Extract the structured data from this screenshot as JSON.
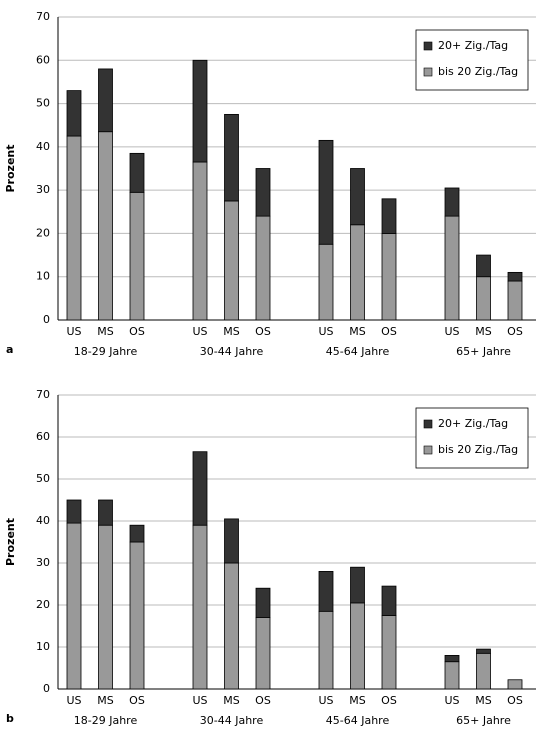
{
  "chart_data": [
    {
      "type": "stacked_bar",
      "label": "a",
      "ylabel": "Prozent",
      "categories": [
        "US",
        "MS",
        "OS",
        "US",
        "MS",
        "OS",
        "US",
        "MS",
        "OS",
        "US",
        "MS",
        "OS"
      ],
      "groups": [
        "18-29 Jahre",
        "30-44 Jahre",
        "45-64 Jahre",
        "65+ Jahre"
      ],
      "series": [
        {
          "name": "bis 20 Zig./Tag",
          "color": "#999999",
          "values": [
            42.5,
            43.5,
            29.5,
            36.5,
            27.5,
            24,
            17.5,
            22,
            20,
            24,
            10,
            9
          ]
        },
        {
          "name": "20+ Zig./Tag",
          "color": "#333333",
          "values": [
            10.5,
            14.5,
            9,
            23.5,
            20,
            11,
            24,
            13,
            8,
            6.5,
            5,
            2
          ]
        }
      ],
      "ylim": [
        0,
        70
      ],
      "yticks": [
        0,
        10,
        20,
        30,
        40,
        50,
        60,
        70
      ],
      "grid": true,
      "legend": "upper-right"
    },
    {
      "type": "stacked_bar",
      "label": "b",
      "ylabel": "Prozent",
      "categories": [
        "US",
        "MS",
        "OS",
        "US",
        "MS",
        "OS",
        "US",
        "MS",
        "OS",
        "US",
        "MS",
        "OS"
      ],
      "groups": [
        "18-29 Jahre",
        "30-44 Jahre",
        "45-64 Jahre",
        "65+ Jahre"
      ],
      "series": [
        {
          "name": "bis 20 Zig./Tag",
          "color": "#999999",
          "values": [
            39.5,
            39,
            35,
            39,
            30,
            17,
            18.5,
            20.5,
            17.5,
            6.5,
            8.5,
            2.2
          ]
        },
        {
          "name": "20+ Zig./Tag",
          "color": "#333333",
          "values": [
            5.5,
            6,
            4,
            17.5,
            10.5,
            7,
            9.5,
            8.5,
            7,
            1.5,
            1,
            0
          ]
        }
      ],
      "ylim": [
        0,
        70
      ],
      "yticks": [
        0,
        10,
        20,
        30,
        40,
        50,
        60,
        70
      ],
      "grid": true,
      "legend": "upper-right"
    }
  ]
}
